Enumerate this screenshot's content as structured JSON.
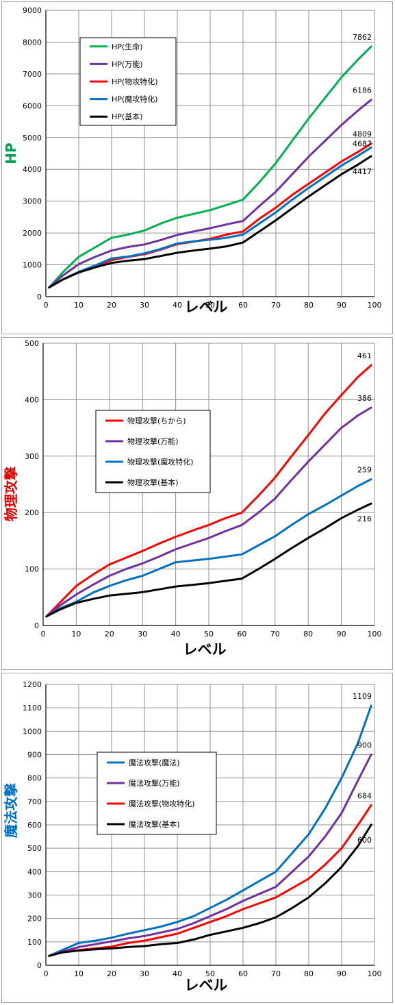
{
  "chart_data": [
    {
      "type": "line",
      "ylabel": "HP",
      "ylabel_color": "#00a050",
      "xlabel": "レベル",
      "xlim": [
        0,
        100
      ],
      "ylim": [
        0,
        9000
      ],
      "x_ticks": [
        0,
        10,
        20,
        30,
        40,
        50,
        60,
        70,
        80,
        90,
        100
      ],
      "y_ticks": [
        0,
        1000,
        2000,
        3000,
        4000,
        5000,
        6000,
        7000,
        8000,
        9000
      ],
      "grid": true,
      "legend_position": "top-left",
      "series": [
        {
          "name": "HP(生命)",
          "color": "#00b050",
          "end_label": "7862",
          "x": [
            1,
            5,
            10,
            15,
            20,
            25,
            30,
            35,
            40,
            45,
            50,
            55,
            60,
            65,
            70,
            75,
            80,
            85,
            90,
            95,
            99
          ],
          "y": [
            290,
            750,
            1250,
            1550,
            1850,
            1950,
            2080,
            2300,
            2480,
            2600,
            2720,
            2880,
            3050,
            3600,
            4200,
            4900,
            5600,
            6250,
            6900,
            7450,
            7862
          ]
        },
        {
          "name": "HP(万能)",
          "color": "#7030a0",
          "end_label": "6186",
          "x": [
            1,
            5,
            10,
            15,
            20,
            25,
            30,
            35,
            40,
            45,
            50,
            55,
            60,
            65,
            70,
            75,
            80,
            85,
            90,
            95,
            99
          ],
          "y": [
            290,
            650,
            1020,
            1250,
            1450,
            1560,
            1640,
            1780,
            1940,
            2050,
            2150,
            2270,
            2380,
            2850,
            3300,
            3850,
            4400,
            4900,
            5400,
            5850,
            6186
          ]
        },
        {
          "name": "HP(物攻特化)",
          "color": "#ff0000",
          "end_label": "4809",
          "x": [
            1,
            5,
            10,
            15,
            20,
            25,
            30,
            35,
            40,
            45,
            50,
            55,
            60,
            65,
            70,
            75,
            80,
            85,
            90,
            95,
            99
          ],
          "y": [
            290,
            530,
            780,
            950,
            1150,
            1250,
            1330,
            1480,
            1650,
            1730,
            1820,
            1950,
            2050,
            2450,
            2800,
            3200,
            3550,
            3900,
            4250,
            4550,
            4809
          ]
        },
        {
          "name": "HP(魔攻特化)",
          "color": "#0070c0",
          "end_label": "4687",
          "x": [
            1,
            5,
            10,
            15,
            20,
            25,
            30,
            35,
            40,
            45,
            50,
            55,
            60,
            65,
            70,
            75,
            80,
            85,
            90,
            95,
            99
          ],
          "y": [
            290,
            530,
            780,
            980,
            1200,
            1260,
            1360,
            1500,
            1670,
            1740,
            1790,
            1850,
            1950,
            2300,
            2650,
            3050,
            3420,
            3770,
            4120,
            4430,
            4687
          ]
        },
        {
          "name": "HP(基本)",
          "color": "#000000",
          "end_label": "4417",
          "x": [
            1,
            5,
            10,
            15,
            20,
            25,
            30,
            35,
            40,
            45,
            50,
            55,
            60,
            65,
            70,
            75,
            80,
            85,
            90,
            95,
            99
          ],
          "y": [
            290,
            530,
            760,
            920,
            1060,
            1130,
            1180,
            1280,
            1380,
            1450,
            1510,
            1580,
            1700,
            2050,
            2400,
            2780,
            3150,
            3500,
            3850,
            4150,
            4417
          ]
        }
      ]
    },
    {
      "type": "line",
      "ylabel": "物理攻撃",
      "ylabel_color": "#e00000",
      "xlabel": "レベル",
      "xlim": [
        0,
        100
      ],
      "ylim": [
        0,
        500
      ],
      "x_ticks": [
        0,
        10,
        20,
        30,
        40,
        50,
        60,
        70,
        80,
        90,
        100
      ],
      "y_ticks": [
        0,
        100,
        200,
        300,
        400,
        500
      ],
      "grid": true,
      "legend_position": "center-left",
      "series": [
        {
          "name": "物理攻撃(ちから)",
          "color": "#ff0000",
          "end_label": "461",
          "x": [
            1,
            5,
            10,
            15,
            20,
            25,
            30,
            35,
            40,
            45,
            50,
            55,
            60,
            65,
            70,
            75,
            80,
            85,
            90,
            95,
            99
          ],
          "y": [
            16,
            40,
            70,
            90,
            108,
            120,
            132,
            145,
            157,
            168,
            178,
            190,
            200,
            230,
            262,
            300,
            337,
            375,
            408,
            440,
            461
          ]
        },
        {
          "name": "物理攻撃(万能)",
          "color": "#7030a0",
          "end_label": "386",
          "x": [
            1,
            5,
            10,
            15,
            20,
            25,
            30,
            35,
            40,
            45,
            50,
            55,
            60,
            65,
            70,
            75,
            80,
            85,
            90,
            95,
            99
          ],
          "y": [
            16,
            35,
            55,
            72,
            88,
            100,
            110,
            122,
            135,
            145,
            155,
            167,
            178,
            200,
            225,
            258,
            290,
            320,
            350,
            372,
            386
          ]
        },
        {
          "name": "物理攻撃(魔攻特化)",
          "color": "#0070c0",
          "end_label": "259",
          "x": [
            1,
            5,
            10,
            15,
            20,
            25,
            30,
            35,
            40,
            45,
            50,
            55,
            60,
            65,
            70,
            75,
            80,
            85,
            90,
            95,
            99
          ],
          "y": [
            16,
            30,
            42,
            58,
            70,
            80,
            88,
            100,
            112,
            115,
            118,
            122,
            126,
            142,
            158,
            178,
            197,
            213,
            230,
            247,
            259
          ]
        },
        {
          "name": "物理攻撃(基本)",
          "color": "#000000",
          "end_label": "216",
          "x": [
            1,
            5,
            10,
            15,
            20,
            25,
            30,
            35,
            40,
            45,
            50,
            55,
            60,
            65,
            70,
            75,
            80,
            85,
            90,
            95,
            99
          ],
          "y": [
            16,
            28,
            40,
            47,
            53,
            56,
            59,
            64,
            69,
            72,
            75,
            79,
            83,
            100,
            118,
            137,
            155,
            172,
            190,
            205,
            216
          ]
        }
      ]
    },
    {
      "type": "line",
      "ylabel": "魔法攻撃",
      "ylabel_color": "#0070c0",
      "xlabel": "レベル",
      "xlim": [
        0,
        100
      ],
      "ylim": [
        0,
        1200
      ],
      "x_ticks": [
        0,
        10,
        20,
        30,
        40,
        50,
        60,
        70,
        80,
        90,
        100
      ],
      "y_ticks": [
        0,
        100,
        200,
        300,
        400,
        500,
        600,
        700,
        800,
        900,
        1000,
        1100,
        1200
      ],
      "grid": true,
      "legend_position": "center-left",
      "series": [
        {
          "name": "魔法攻撃(魔法)",
          "color": "#0070c0",
          "end_label": "1109",
          "x": [
            1,
            5,
            10,
            15,
            20,
            25,
            30,
            35,
            40,
            45,
            50,
            55,
            60,
            65,
            70,
            75,
            80,
            85,
            90,
            95,
            99
          ],
          "y": [
            40,
            65,
            95,
            105,
            118,
            135,
            150,
            165,
            185,
            210,
            245,
            280,
            320,
            360,
            400,
            480,
            560,
            670,
            800,
            950,
            1109
          ]
        },
        {
          "name": "魔法攻撃(万能)",
          "color": "#7030a0",
          "end_label": "900",
          "x": [
            1,
            5,
            10,
            15,
            20,
            25,
            30,
            35,
            40,
            45,
            50,
            55,
            60,
            65,
            70,
            75,
            80,
            85,
            90,
            95,
            99
          ],
          "y": [
            40,
            58,
            78,
            90,
            102,
            115,
            125,
            140,
            155,
            180,
            210,
            240,
            275,
            305,
            335,
            400,
            465,
            550,
            650,
            790,
            900
          ]
        },
        {
          "name": "魔法攻撃(物攻特化)",
          "color": "#ff0000",
          "end_label": "684",
          "x": [
            1,
            5,
            10,
            15,
            20,
            25,
            30,
            35,
            40,
            45,
            50,
            55,
            60,
            65,
            70,
            75,
            80,
            85,
            90,
            95,
            99
          ],
          "y": [
            40,
            55,
            65,
            72,
            80,
            95,
            105,
            120,
            135,
            160,
            185,
            210,
            240,
            265,
            290,
            330,
            370,
            430,
            500,
            600,
            684
          ]
        },
        {
          "name": "魔法攻撃(基本)",
          "color": "#000000",
          "end_label": "600",
          "x": [
            1,
            5,
            10,
            15,
            20,
            25,
            30,
            35,
            40,
            45,
            50,
            55,
            60,
            65,
            70,
            75,
            80,
            85,
            90,
            95,
            99
          ],
          "y": [
            40,
            55,
            63,
            68,
            72,
            78,
            82,
            90,
            95,
            110,
            130,
            145,
            160,
            180,
            205,
            245,
            290,
            350,
            420,
            510,
            600
          ]
        }
      ]
    }
  ]
}
